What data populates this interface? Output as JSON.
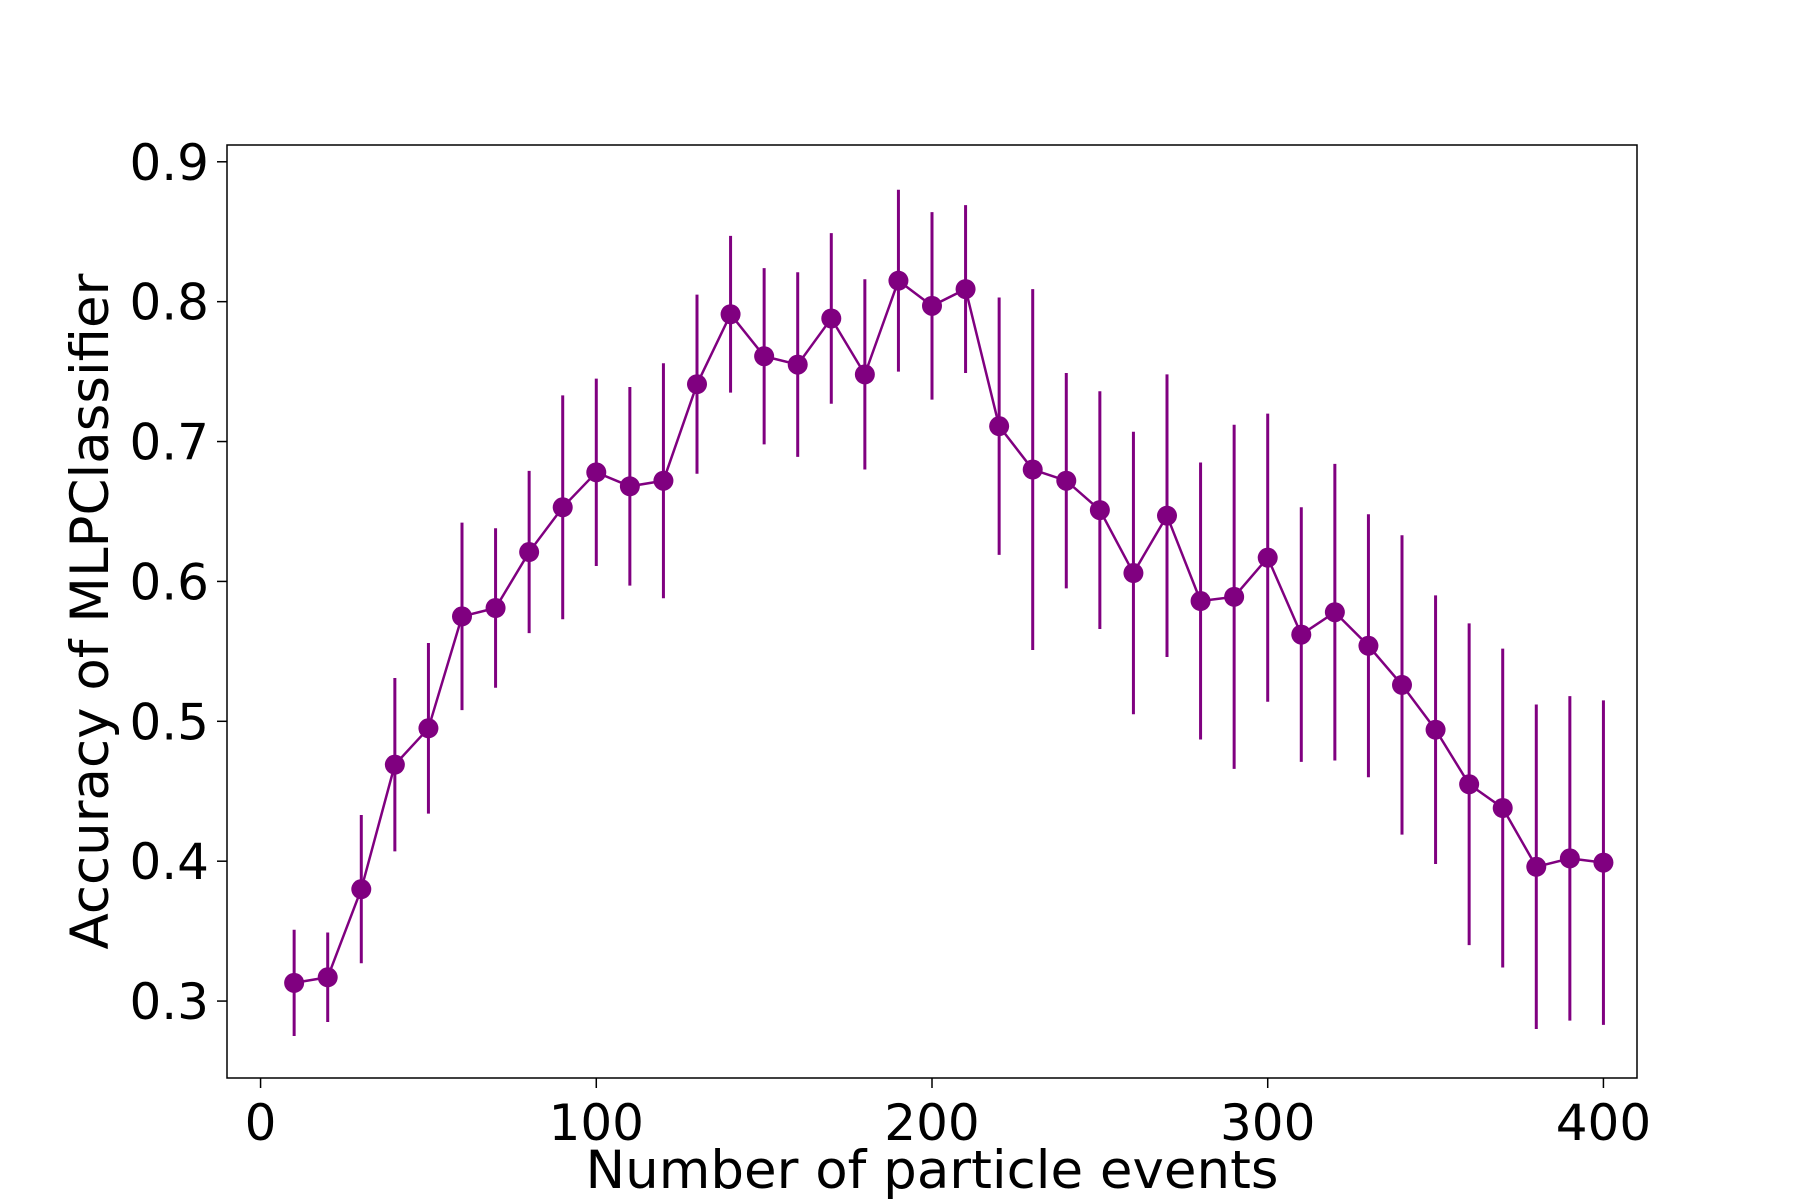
{
  "chart_data": {
    "type": "scatter",
    "title": "",
    "xlabel": "Number of particle events",
    "ylabel": "Accuracy of MLPClassifier",
    "xlim": [
      -10,
      410
    ],
    "ylim": [
      0.245,
      0.912
    ],
    "xticks": [
      0,
      100,
      200,
      300,
      400
    ],
    "yticks": [
      0.3,
      0.4,
      0.5,
      0.6,
      0.7,
      0.8,
      0.9
    ],
    "xtick_labels": [
      "0",
      "100",
      "200",
      "300",
      "400"
    ],
    "ytick_labels": [
      "0.3",
      "0.4",
      "0.5",
      "0.6",
      "0.7",
      "0.8",
      "0.9"
    ],
    "grid": false,
    "legend": "none",
    "color": "#800080",
    "series": [
      {
        "x": [
          10,
          20,
          30,
          40,
          50,
          60,
          70,
          80,
          90,
          100,
          110,
          120,
          130,
          140,
          150,
          160,
          170,
          180,
          190,
          200,
          210,
          220,
          230,
          240,
          250,
          260,
          270,
          280,
          290,
          300,
          310,
          320,
          330,
          340,
          350,
          360,
          370,
          380,
          390,
          400
        ],
        "y": [
          0.313,
          0.317,
          0.38,
          0.469,
          0.495,
          0.575,
          0.581,
          0.621,
          0.653,
          0.678,
          0.668,
          0.672,
          0.741,
          0.791,
          0.761,
          0.755,
          0.788,
          0.748,
          0.815,
          0.797,
          0.809,
          0.711,
          0.68,
          0.672,
          0.651,
          0.606,
          0.647,
          0.586,
          0.589,
          0.617,
          0.562,
          0.578,
          0.554,
          0.526,
          0.494,
          0.455,
          0.438,
          0.396,
          0.402,
          0.399
        ],
        "yerr": [
          0.038,
          0.032,
          0.053,
          0.062,
          0.061,
          0.067,
          0.057,
          0.058,
          0.08,
          0.067,
          0.071,
          0.084,
          0.064,
          0.056,
          0.063,
          0.066,
          0.061,
          0.068,
          0.065,
          0.067,
          0.06,
          0.092,
          0.129,
          0.077,
          0.085,
          0.101,
          0.101,
          0.099,
          0.123,
          0.103,
          0.091,
          0.106,
          0.094,
          0.107,
          0.096,
          0.115,
          0.114,
          0.116,
          0.116,
          0.116
        ]
      }
    ]
  }
}
